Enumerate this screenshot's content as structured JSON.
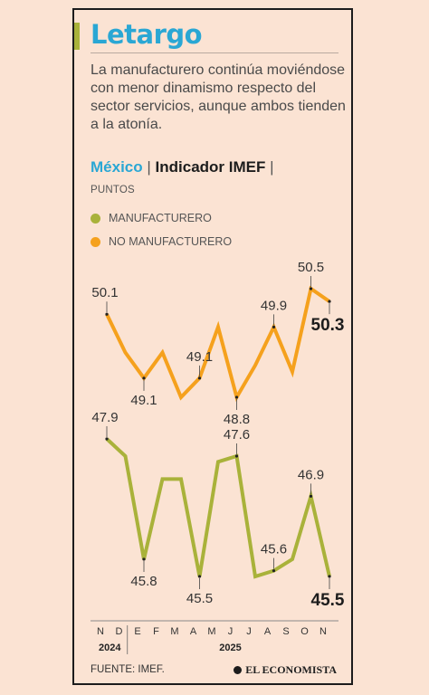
{
  "header": {
    "title": "Letargo",
    "subtitle": "La manufacturero continúa moviéndose con menor dinamismo respecto del sector servicios, aunque ambos tienden a la atonía."
  },
  "chart_heading": {
    "country": "México",
    "separator": "|",
    "indicator": "Indicador IMEF",
    "units": "PUNTOS"
  },
  "colors": {
    "manufacturero": "#a9b23a",
    "no_manufacturero": "#f5a11d",
    "title": "#2aa7d4"
  },
  "chart_data": {
    "type": "line",
    "ylabel": "PUNTOS",
    "categories": [
      "N",
      "D",
      "E",
      "F",
      "M",
      "A",
      "M",
      "J",
      "J",
      "A",
      "S",
      "O",
      "N"
    ],
    "years": [
      {
        "label": "2024",
        "from": 0,
        "to": 1
      },
      {
        "label": "2025",
        "from": 2,
        "to": 12
      }
    ],
    "series": [
      {
        "name": "NO MANUFACTURERO",
        "color": "#f5a11d",
        "values": [
          50.1,
          49.5,
          49.1,
          49.5,
          48.8,
          49.1,
          49.9,
          48.8,
          49.3,
          49.9,
          49.2,
          50.5,
          50.3
        ],
        "labeled": [
          {
            "index": 0,
            "text": "50.1"
          },
          {
            "index": 2,
            "text": "49.1"
          },
          {
            "index": 5,
            "text": "49.1"
          },
          {
            "index": 7,
            "text": "48.8"
          },
          {
            "index": 9,
            "text": "49.9"
          },
          {
            "index": 11,
            "text": "50.5"
          },
          {
            "index": 12,
            "text": "50.3",
            "emphasis": true
          }
        ]
      },
      {
        "name": "MANUFACTURERO",
        "color": "#a9b23a",
        "values": [
          47.9,
          47.6,
          45.8,
          47.2,
          47.2,
          45.5,
          47.5,
          47.6,
          45.5,
          45.6,
          45.8,
          46.9,
          45.5
        ],
        "labeled": [
          {
            "index": 0,
            "text": "47.9"
          },
          {
            "index": 2,
            "text": "45.8"
          },
          {
            "index": 5,
            "text": "45.5"
          },
          {
            "index": 7,
            "text": "47.6"
          },
          {
            "index": 9,
            "text": "45.6"
          },
          {
            "index": 11,
            "text": "46.9"
          },
          {
            "index": 12,
            "text": "45.5",
            "emphasis": true
          }
        ]
      }
    ]
  },
  "footer": {
    "source": "FUENTE: IMEF.",
    "brand": "EL ECONOMISTA"
  }
}
